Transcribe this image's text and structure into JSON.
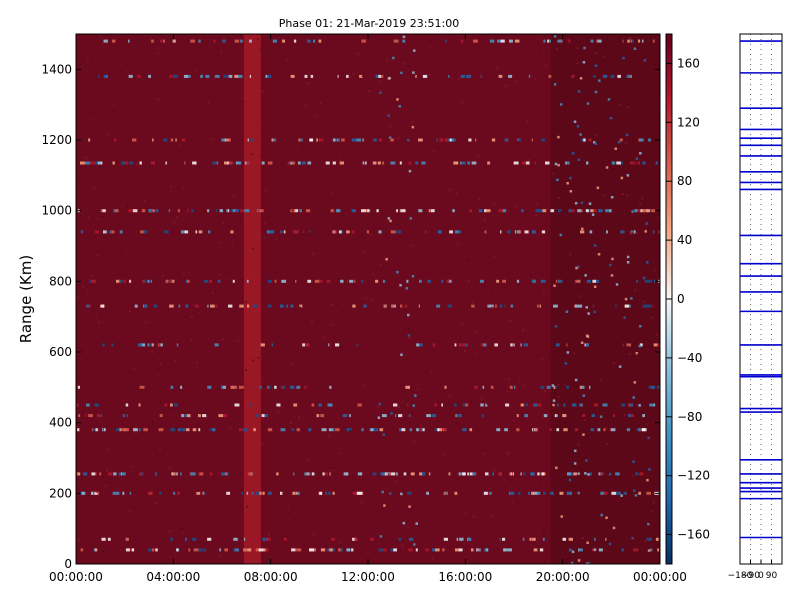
{
  "chart_data": {
    "type": "heatmap",
    "title": "Phase 01: 21-Mar-2019 23:51:00",
    "ylabel": "Range (Km)",
    "xlabel": "",
    "x_ticks": [
      "00:00:00",
      "04:00:00",
      "08:00:00",
      "12:00:00",
      "16:00:00",
      "20:00:00",
      "00:00:00"
    ],
    "x_tick_hours": [
      0,
      4,
      8,
      12,
      16,
      20,
      24
    ],
    "xlim_hours": [
      0,
      24
    ],
    "y_ticks": [
      0,
      200,
      400,
      600,
      800,
      1000,
      1200,
      1400
    ],
    "ylim": [
      0,
      1500
    ],
    "colorbar": {
      "ticks": [
        160,
        120,
        80,
        40,
        0,
        -40,
        -80,
        -120,
        -160
      ],
      "range": [
        -180,
        180
      ],
      "colormap": "RdBu_r"
    },
    "background_phase": 165,
    "bright_band_hours": [
      6.9,
      7.6
    ],
    "dark_region_from_hours": 19.5,
    "noisy_rows_km": [
      40,
      70,
      200,
      255,
      380,
      420,
      450,
      500,
      620,
      730,
      800,
      940,
      1000,
      1135,
      1200,
      1380,
      1480
    ],
    "noisy_columns_hours": [
      12.4,
      19.5,
      20.5,
      22.0
    ],
    "side_panel": {
      "x_ticks": [
        "-180",
        "-90",
        "0",
        "90"
      ],
      "x_range": [
        -180,
        180
      ],
      "profile_lines_km": [
        1480,
        1390,
        1290,
        1230,
        1205,
        1185,
        1155,
        1110,
        1080,
        1060,
        930,
        850,
        815,
        770,
        715,
        620,
        535,
        530,
        440,
        430,
        295,
        255,
        230,
        215,
        205,
        185,
        75
      ]
    },
    "colors": {
      "background": "#6b0a1f",
      "bright_band": "#9a1826",
      "dark_region": "#5c0819",
      "profile_line": "#0000cc"
    }
  }
}
